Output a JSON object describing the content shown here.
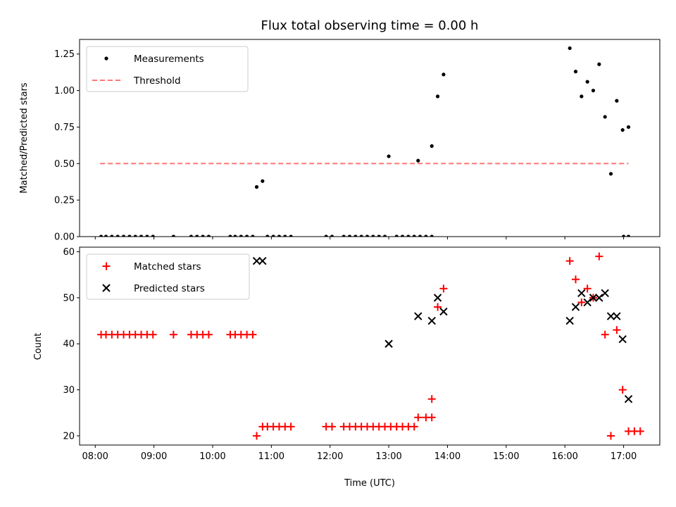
{
  "chart_data": [
    {
      "type": "scatter",
      "title": "Flux total observing time = 0.00 h",
      "xlabel": "",
      "ylabel": "Matched/Predicted stars",
      "ylim": [
        0,
        1.35
      ],
      "yticks": [
        "0.00",
        "0.25",
        "0.50",
        "0.75",
        "1.00",
        "1.25"
      ],
      "xlim": [
        "07:44",
        "17:37"
      ],
      "legend_placement": "top-left",
      "series": [
        {
          "name": "Measurements",
          "color": "#000000",
          "marker": "dot",
          "points": [
            [
              "08:06",
              0
            ],
            [
              "08:11",
              0
            ],
            [
              "08:17",
              0
            ],
            [
              "08:23",
              0
            ],
            [
              "08:29",
              0
            ],
            [
              "08:35",
              0
            ],
            [
              "08:41",
              0
            ],
            [
              "08:47",
              0
            ],
            [
              "08:53",
              0
            ],
            [
              "08:59",
              0
            ],
            [
              "09:20",
              0
            ],
            [
              "09:38",
              0
            ],
            [
              "09:44",
              0
            ],
            [
              "09:50",
              0
            ],
            [
              "09:56",
              0
            ],
            [
              "10:18",
              0
            ],
            [
              "10:23",
              0
            ],
            [
              "10:29",
              0
            ],
            [
              "10:35",
              0
            ],
            [
              "10:41",
              0
            ],
            [
              "10:45",
              0.34
            ],
            [
              "10:51",
              0.38
            ],
            [
              "10:56",
              0
            ],
            [
              "11:02",
              0
            ],
            [
              "11:08",
              0
            ],
            [
              "11:14",
              0
            ],
            [
              "11:20",
              0
            ],
            [
              "11:56",
              0
            ],
            [
              "12:02",
              0
            ],
            [
              "12:14",
              0
            ],
            [
              "12:20",
              0
            ],
            [
              "12:26",
              0
            ],
            [
              "12:32",
              0
            ],
            [
              "12:38",
              0
            ],
            [
              "12:44",
              0
            ],
            [
              "12:50",
              0
            ],
            [
              "12:56",
              0
            ],
            [
              "13:00",
              0.55
            ],
            [
              "13:08",
              0
            ],
            [
              "13:14",
              0
            ],
            [
              "13:20",
              0
            ],
            [
              "13:26",
              0
            ],
            [
              "13:32",
              0
            ],
            [
              "13:30",
              0.52
            ],
            [
              "13:38",
              0
            ],
            [
              "13:44",
              0
            ],
            [
              "13:44",
              0.62
            ],
            [
              "13:50",
              0.96
            ],
            [
              "13:56",
              1.11
            ],
            [
              "16:05",
              1.29
            ],
            [
              "16:11",
              1.13
            ],
            [
              "16:17",
              0.96
            ],
            [
              "16:23",
              1.06
            ],
            [
              "16:29",
              1.0
            ],
            [
              "16:35",
              1.18
            ],
            [
              "16:41",
              0.82
            ],
            [
              "16:47",
              0.43
            ],
            [
              "16:53",
              0.93
            ],
            [
              "16:59",
              0.73
            ],
            [
              "17:05",
              0.75
            ],
            [
              "17:00",
              0
            ],
            [
              "17:05",
              0
            ]
          ]
        },
        {
          "name": "Threshold",
          "color": "#ff7777",
          "marker": "dashed-line",
          "points": [
            [
              "08:05",
              0.5
            ],
            [
              "17:05",
              0.5
            ]
          ]
        }
      ]
    },
    {
      "type": "scatter",
      "title": "",
      "xlabel": "Time (UTC)",
      "ylabel": "Count",
      "ylim": [
        18,
        61
      ],
      "yticks": [
        "20",
        "30",
        "40",
        "50",
        "60"
      ],
      "xlim": [
        "07:44",
        "17:37"
      ],
      "xticks": [
        "08:00",
        "09:00",
        "10:00",
        "11:00",
        "12:00",
        "13:00",
        "14:00",
        "15:00",
        "16:00",
        "17:00"
      ],
      "legend_placement": "top-left",
      "series": [
        {
          "name": "Matched stars",
          "color": "#ff0000",
          "marker": "plus",
          "points": [
            [
              "08:06",
              42
            ],
            [
              "08:11",
              42
            ],
            [
              "08:17",
              42
            ],
            [
              "08:23",
              42
            ],
            [
              "08:29",
              42
            ],
            [
              "08:35",
              42
            ],
            [
              "08:41",
              42
            ],
            [
              "08:47",
              42
            ],
            [
              "08:53",
              42
            ],
            [
              "08:59",
              42
            ],
            [
              "09:20",
              42
            ],
            [
              "09:38",
              42
            ],
            [
              "09:44",
              42
            ],
            [
              "09:50",
              42
            ],
            [
              "09:56",
              42
            ],
            [
              "10:18",
              42
            ],
            [
              "10:23",
              42
            ],
            [
              "10:29",
              42
            ],
            [
              "10:35",
              42
            ],
            [
              "10:41",
              42
            ],
            [
              "10:45",
              20
            ],
            [
              "10:51",
              22
            ],
            [
              "10:56",
              22
            ],
            [
              "11:02",
              22
            ],
            [
              "11:08",
              22
            ],
            [
              "11:14",
              22
            ],
            [
              "11:20",
              22
            ],
            [
              "11:56",
              22
            ],
            [
              "12:02",
              22
            ],
            [
              "12:14",
              22
            ],
            [
              "12:20",
              22
            ],
            [
              "12:26",
              22
            ],
            [
              "12:32",
              22
            ],
            [
              "12:38",
              22
            ],
            [
              "12:44",
              22
            ],
            [
              "12:50",
              22
            ],
            [
              "12:56",
              22
            ],
            [
              "13:02",
              22
            ],
            [
              "13:08",
              22
            ],
            [
              "13:14",
              22
            ],
            [
              "13:20",
              22
            ],
            [
              "13:26",
              22
            ],
            [
              "13:30",
              24
            ],
            [
              "13:38",
              24
            ],
            [
              "13:44",
              24
            ],
            [
              "13:44",
              28
            ],
            [
              "13:50",
              48
            ],
            [
              "13:56",
              52
            ],
            [
              "16:05",
              58
            ],
            [
              "16:11",
              54
            ],
            [
              "16:17",
              49
            ],
            [
              "16:23",
              52
            ],
            [
              "16:29",
              50
            ],
            [
              "16:35",
              59
            ],
            [
              "16:41",
              42
            ],
            [
              "16:47",
              20
            ],
            [
              "16:53",
              43
            ],
            [
              "16:59",
              30
            ],
            [
              "17:05",
              21
            ],
            [
              "17:11",
              21
            ],
            [
              "17:17",
              21
            ]
          ]
        },
        {
          "name": "Predicted stars",
          "color": "#000000",
          "marker": "x",
          "points": [
            [
              "10:45",
              58
            ],
            [
              "10:51",
              58
            ],
            [
              "13:00",
              40
            ],
            [
              "13:30",
              46
            ],
            [
              "13:44",
              45
            ],
            [
              "13:50",
              50
            ],
            [
              "13:56",
              47
            ],
            [
              "16:05",
              45
            ],
            [
              "16:11",
              48
            ],
            [
              "16:17",
              51
            ],
            [
              "16:23",
              49
            ],
            [
              "16:29",
              50
            ],
            [
              "16:35",
              50
            ],
            [
              "16:41",
              51
            ],
            [
              "16:47",
              46
            ],
            [
              "16:53",
              46
            ],
            [
              "16:59",
              41
            ],
            [
              "17:05",
              28
            ]
          ]
        }
      ]
    }
  ]
}
